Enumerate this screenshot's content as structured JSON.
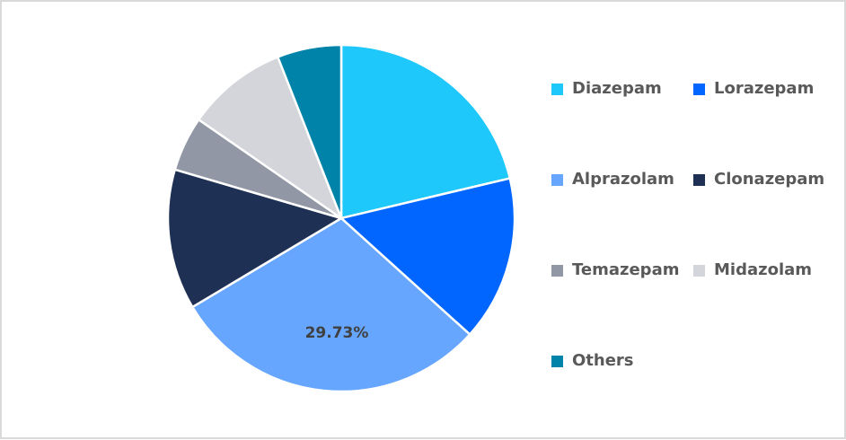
{
  "chart_data": {
    "type": "pie",
    "title": "",
    "categories": [
      "Diazepam",
      "Lorazepam",
      "Alprazolam",
      "Clonazepam",
      "Temazepam",
      "Midazolam",
      "Others"
    ],
    "values": [
      21.3,
      15.4,
      29.73,
      13.1,
      5.1,
      9.4,
      5.97
    ],
    "unit": "%",
    "colors": [
      "#1ec8fb",
      "#0066ff",
      "#66a6ff",
      "#1e3054",
      "#9197a4",
      "#d3d5da",
      "#0083a8"
    ],
    "data_labels": [
      {
        "category": "Alprazolam",
        "text": "29.73%"
      }
    ],
    "start_angle": 0,
    "direction": "clockwise",
    "legend_position": "right"
  },
  "legend": {
    "items": [
      {
        "label": "Diazepam",
        "color": "#1ec8fb"
      },
      {
        "label": "Lorazepam",
        "color": "#0066ff"
      },
      {
        "label": "Alprazolam",
        "color": "#66a6ff"
      },
      {
        "label": "Clonazepam",
        "color": "#1e3054"
      },
      {
        "label": "Temazepam",
        "color": "#9197a4"
      },
      {
        "label": "Midazolam",
        "color": "#d3d5da"
      },
      {
        "label": "Others",
        "color": "#0083a8"
      }
    ]
  },
  "labels": {
    "alprazolam_pct": "29.73%"
  }
}
